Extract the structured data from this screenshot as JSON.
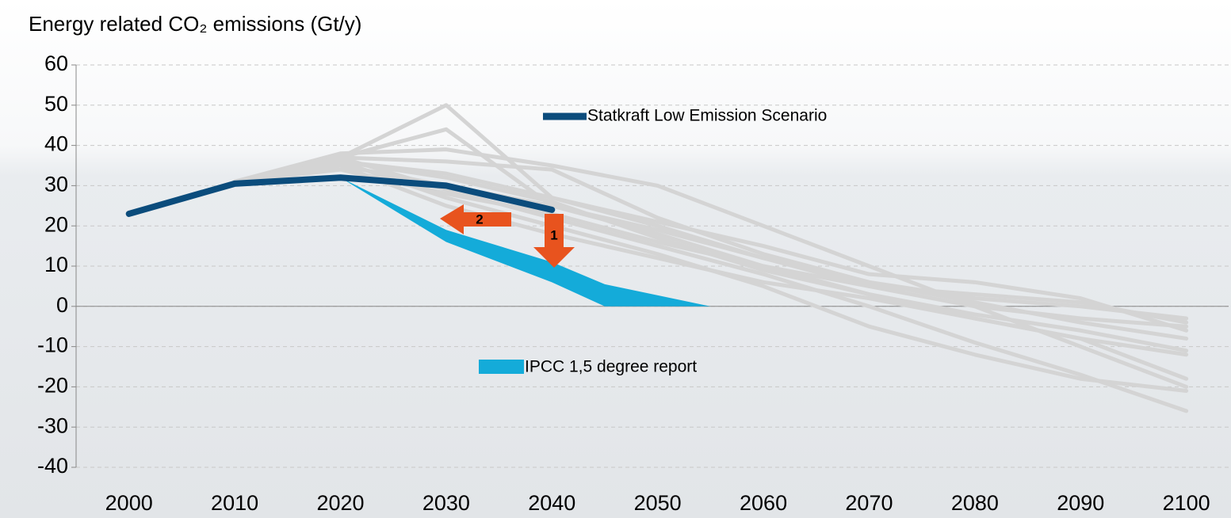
{
  "chart_data": {
    "type": "line",
    "title": "Energy related CO₂ emissions (Gt/y)",
    "x": [
      2000,
      2010,
      2020,
      2030,
      2040,
      2050,
      2060,
      2070,
      2080,
      2090,
      2100
    ],
    "xlim": [
      1995,
      2104
    ],
    "xticks": [
      2000,
      2010,
      2020,
      2030,
      2040,
      2050,
      2060,
      2070,
      2080,
      2090,
      2100
    ],
    "ylim": [
      -40,
      60
    ],
    "yticks": [
      -40,
      -30,
      -20,
      -10,
      0,
      10,
      20,
      30,
      40,
      50,
      60
    ],
    "grid": true,
    "series": [
      {
        "name": "Statkraft Low Emission Scenario",
        "color": "#0b4c7c",
        "values": [
          23,
          30.5,
          32,
          30,
          24,
          null,
          null,
          null,
          null,
          null,
          null
        ]
      },
      {
        "color": "#d4d4d4",
        "values": [
          null,
          31,
          37,
          50,
          27,
          20,
          12,
          5,
          0,
          -3,
          -5
        ]
      },
      {
        "color": "#d4d4d4",
        "values": [
          null,
          31,
          37,
          44,
          25,
          18,
          10,
          3,
          -3,
          -8,
          -12
        ]
      },
      {
        "color": "#d4d4d4",
        "values": [
          null,
          31,
          38,
          39,
          35,
          30,
          20,
          10,
          0,
          -10,
          -20
        ]
      },
      {
        "color": "#d4d4d4",
        "values": [
          null,
          31,
          37,
          36,
          34,
          22,
          13,
          6,
          2,
          0,
          -3
        ]
      },
      {
        "color": "#d4d4d4",
        "values": [
          null,
          31,
          36,
          33,
          27,
          21,
          15,
          8,
          6,
          2,
          -6
        ]
      },
      {
        "color": "#d4d4d4",
        "values": [
          null,
          31,
          35,
          30,
          25,
          19,
          12,
          6,
          1,
          -4,
          -8
        ]
      },
      {
        "color": "#d4d4d4",
        "values": [
          null,
          31,
          37,
          29,
          22,
          15,
          8,
          0,
          -9,
          -17,
          -26
        ]
      },
      {
        "color": "#d4d4d4",
        "values": [
          null,
          31,
          36,
          27,
          20,
          13,
          5,
          -5,
          -12,
          -18,
          -21
        ]
      },
      {
        "color": "#d4d4d4",
        "values": [
          null,
          31,
          35,
          25,
          18,
          12,
          6,
          2,
          -3,
          -8,
          -18
        ]
      },
      {
        "color": "#d4d4d4",
        "values": [
          null,
          31,
          36,
          32,
          26,
          17,
          9,
          3,
          -2,
          -6,
          -11
        ]
      },
      {
        "color": "#d4d4d4",
        "values": [
          null,
          31,
          34,
          28,
          23,
          16,
          10,
          5,
          3,
          1,
          -4
        ]
      }
    ],
    "area": {
      "name": "IPCC 1,5 degree report",
      "color": "#14abd9",
      "x": [
        2020,
        2030,
        2040,
        2045,
        2055
      ],
      "upper": [
        32,
        19,
        11,
        5.5,
        0
      ],
      "lower": [
        32,
        16,
        6,
        0,
        0
      ]
    },
    "annotations": [
      "2",
      "1"
    ],
    "annotation_color": "#e8531e"
  }
}
